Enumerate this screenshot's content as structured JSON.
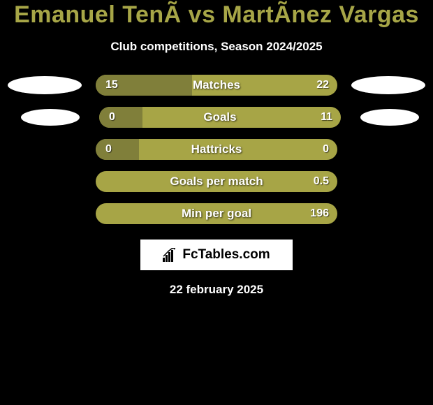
{
  "title": "Emanuel TenÃ vs MartÃnez Vargas",
  "title_color": "#a7a647",
  "subtitle": "Club competitions, Season 2024/2025",
  "background_color": "#000000",
  "bar_base_color": "#a7a546",
  "bar_fill_color": "#807f3a",
  "text_color": "#ffffff",
  "rows": [
    {
      "label": "Matches",
      "left_value": "15",
      "right_value": "22",
      "left_fill_pct": 40,
      "show_ovals": "large"
    },
    {
      "label": "Goals",
      "left_value": "0",
      "right_value": "11",
      "left_fill_pct": 18,
      "show_ovals": "small"
    },
    {
      "label": "Hattricks",
      "left_value": "0",
      "right_value": "0",
      "left_fill_pct": 18,
      "show_ovals": "none"
    },
    {
      "label": "Goals per match",
      "left_value": "",
      "right_value": "0.5",
      "left_fill_pct": 0,
      "show_ovals": "none"
    },
    {
      "label": "Min per goal",
      "left_value": "",
      "right_value": "196",
      "left_fill_pct": 0,
      "show_ovals": "none"
    }
  ],
  "logo_text": "FcTables.com",
  "date_text": "22 february 2025"
}
